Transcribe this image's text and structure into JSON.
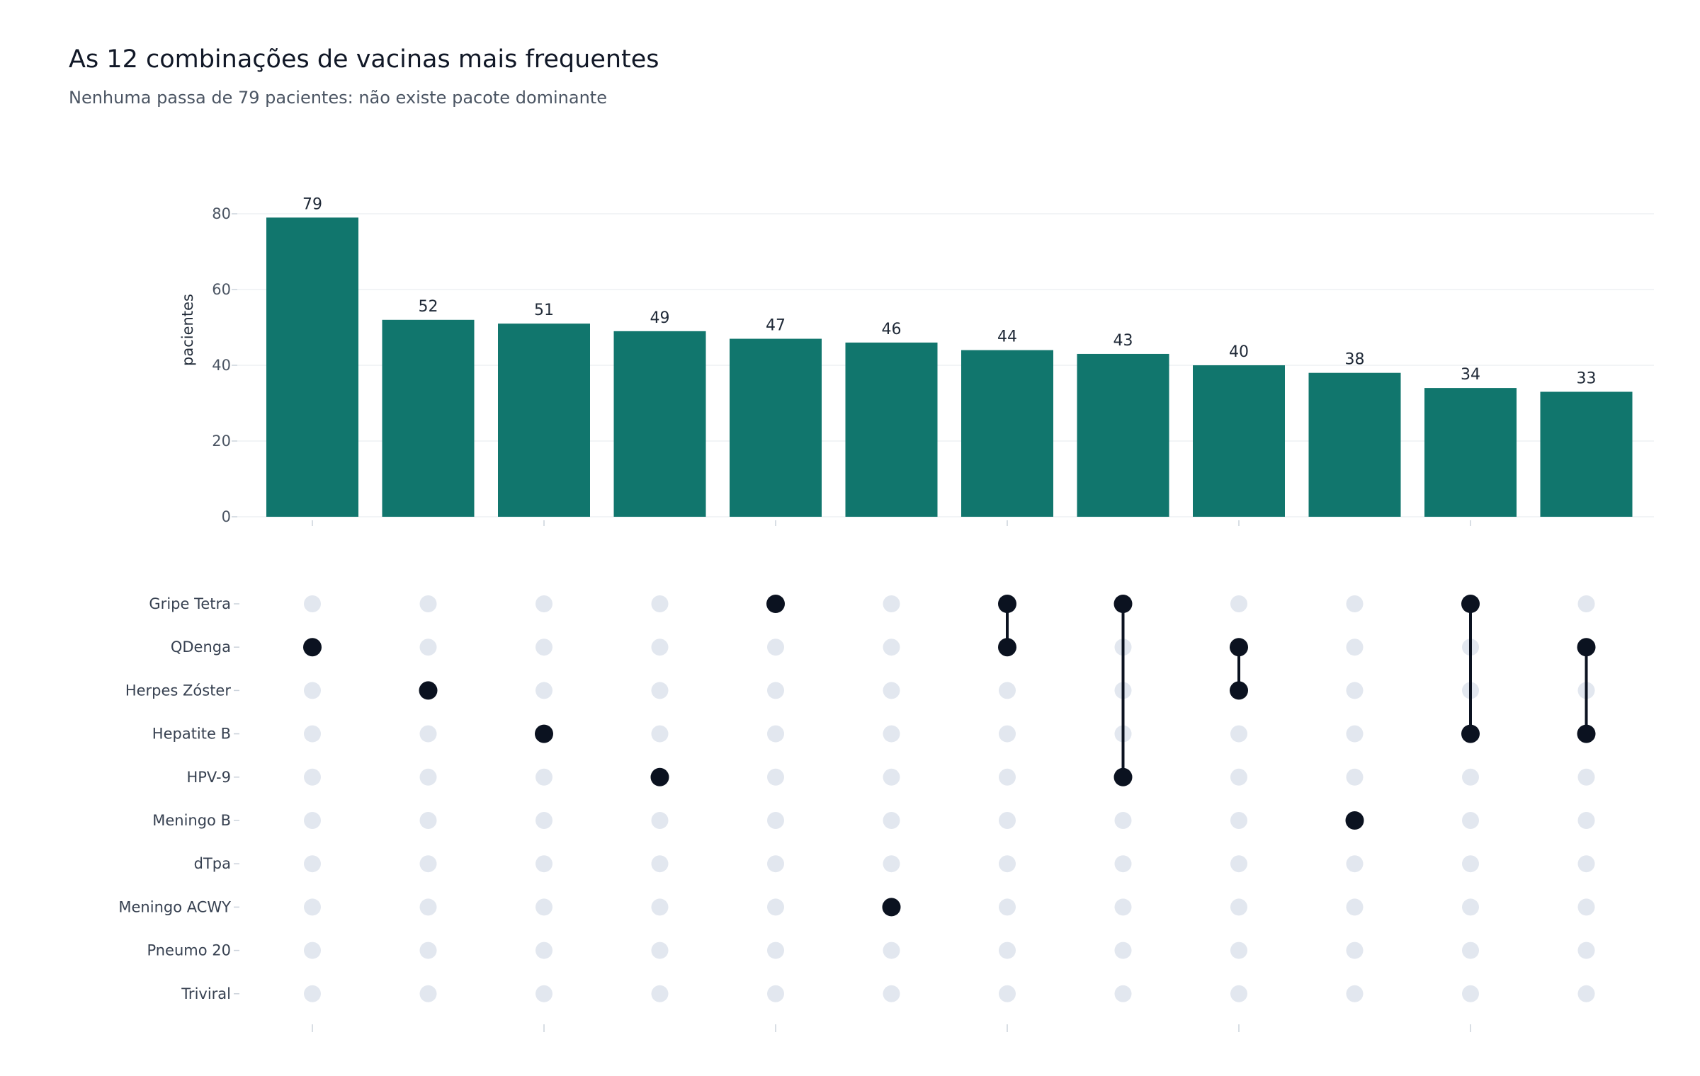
{
  "title": "As 12 combinações de vacinas mais frequentes",
  "subtitle": "Nenhuma passa de 79 pacientes: não existe pacote dominante",
  "colors": {
    "bar": "#11766d",
    "dot_active": "#0b1220",
    "dot_inactive": "#e2e7ef",
    "grid": "#edf0f4",
    "tick": "#cbd2db"
  },
  "chart_data": {
    "type": "bar",
    "subtype": "upset",
    "title": "As 12 combinações de vacinas mais frequentes",
    "subtitle": "Nenhuma passa de 79 pacientes: não existe pacote dominante",
    "ylabel": "pacientes",
    "ylim": [
      0,
      80
    ],
    "yticks": [
      0,
      20,
      40,
      60,
      80
    ],
    "grid": true,
    "sets": [
      "Gripe Tetra",
      "QDenga",
      "Herpes Zóster",
      "Hepatite B",
      "HPV-9",
      "Meningo B",
      "dTpa",
      "Meningo ACWY",
      "Pneumo 20",
      "Triviral"
    ],
    "values": [
      79,
      52,
      51,
      49,
      47,
      46,
      44,
      43,
      40,
      38,
      34,
      33
    ],
    "combinations": [
      [
        "QDenga"
      ],
      [
        "Herpes Zóster"
      ],
      [
        "Hepatite B"
      ],
      [
        "HPV-9"
      ],
      [
        "Gripe Tetra"
      ],
      [
        "Meningo ACWY"
      ],
      [
        "Gripe Tetra",
        "QDenga"
      ],
      [
        "Gripe Tetra",
        "HPV-9"
      ],
      [
        "QDenga",
        "Herpes Zóster"
      ],
      [
        "Meningo B"
      ],
      [
        "Gripe Tetra",
        "Hepatite B"
      ],
      [
        "QDenga",
        "Hepatite B"
      ]
    ]
  }
}
